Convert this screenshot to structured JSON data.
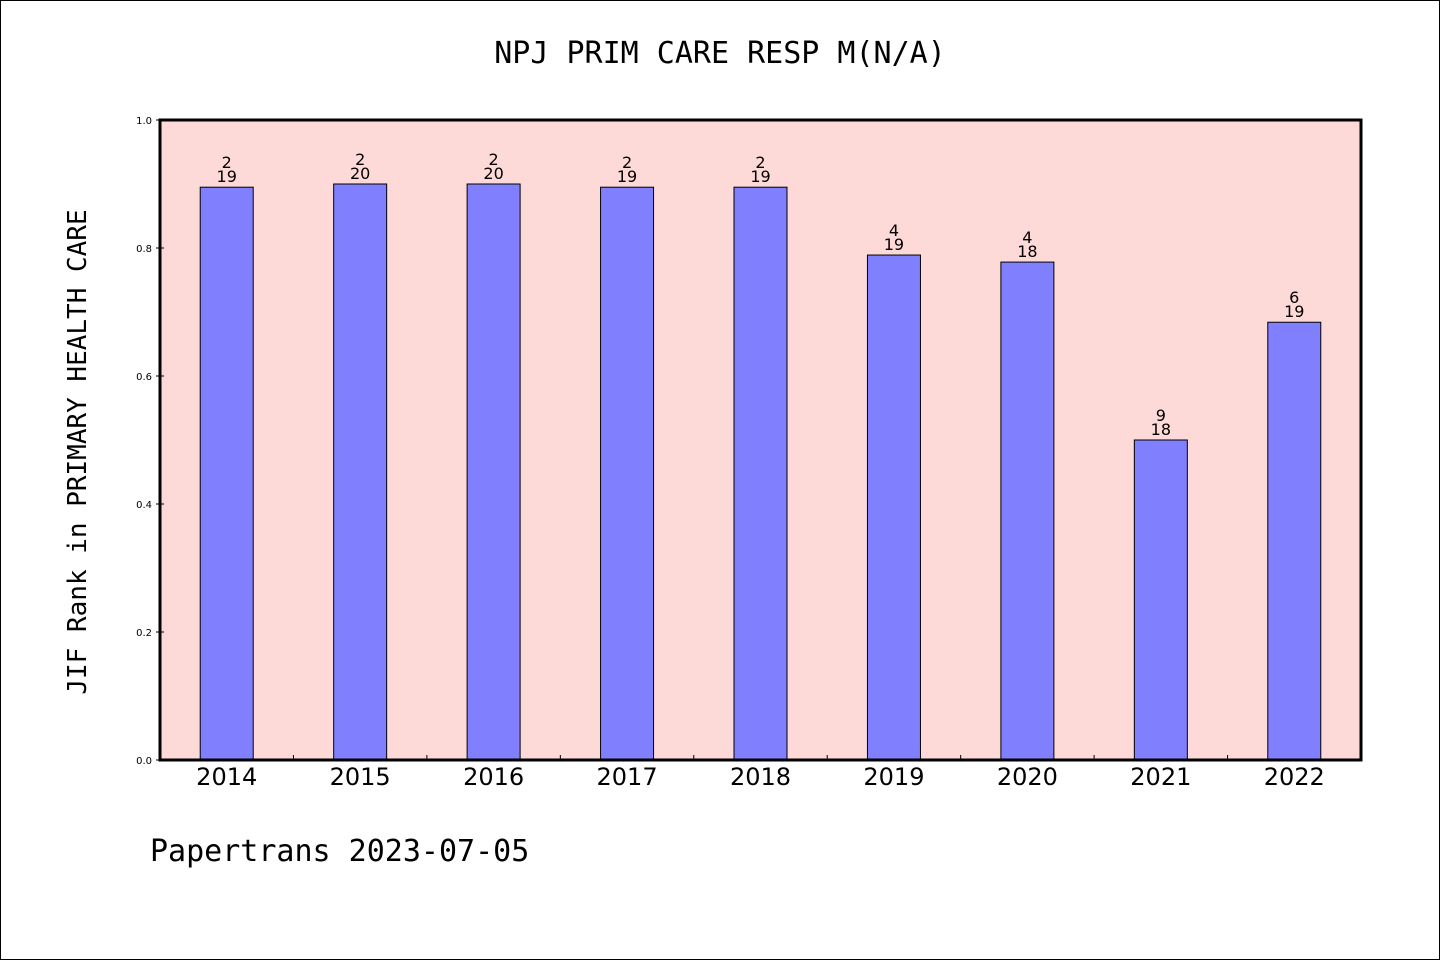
{
  "footer": "Papertrans 2023-07-05",
  "colors": {
    "plot_background": "#fddad8",
    "bar_fill": "#8080ff",
    "bar_stroke": "#000000"
  },
  "chart_data": {
    "type": "bar",
    "title": "NPJ PRIM CARE RESP M(N/A)",
    "xlabel": "",
    "ylabel": "JIF Rank in PRIMARY HEALTH CARE",
    "ylim": [
      0,
      1.0
    ],
    "yticks": [
      "0.0",
      "0.2",
      "0.4",
      "0.6",
      "0.8",
      "1.0"
    ],
    "grid": false,
    "categories": [
      "2014",
      "2015",
      "2016",
      "2017",
      "2018",
      "2019",
      "2020",
      "2021",
      "2022"
    ],
    "values": [
      0.895,
      0.9,
      0.9,
      0.895,
      0.895,
      0.789,
      0.778,
      0.5,
      0.684
    ],
    "labels": [
      {
        "rank": "2",
        "total": "19"
      },
      {
        "rank": "2",
        "total": "20"
      },
      {
        "rank": "2",
        "total": "20"
      },
      {
        "rank": "2",
        "total": "19"
      },
      {
        "rank": "2",
        "total": "19"
      },
      {
        "rank": "4",
        "total": "19"
      },
      {
        "rank": "4",
        "total": "18"
      },
      {
        "rank": "9",
        "total": "18"
      },
      {
        "rank": "6",
        "total": "19"
      }
    ]
  }
}
